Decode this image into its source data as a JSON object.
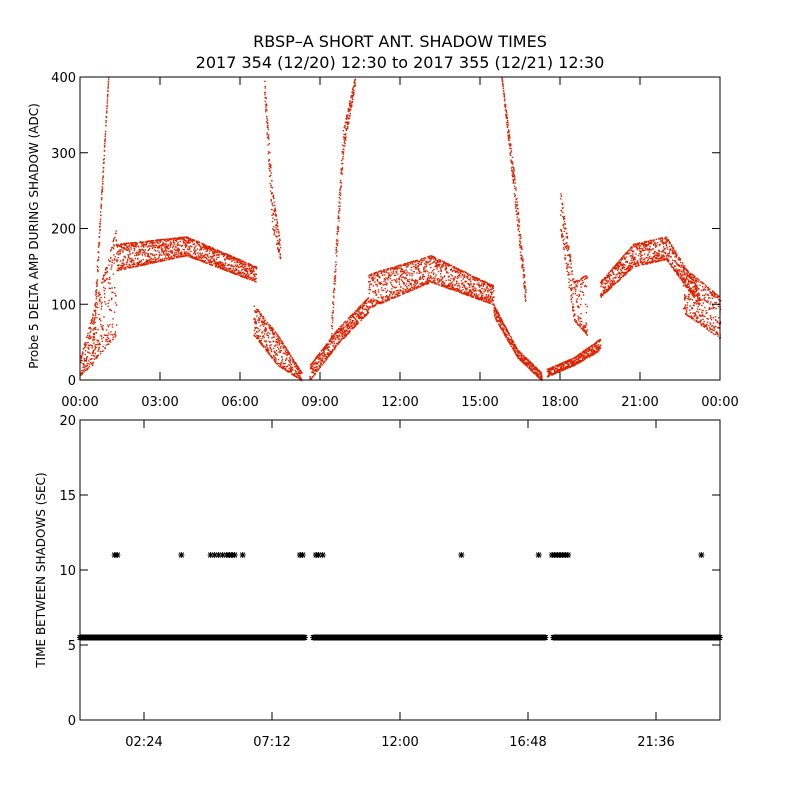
{
  "title_line1": "RBSP–A SHORT ANT. SHADOW TIMES",
  "title_line2": "2017 354 (12/20) 12:30 to 2017 355 (12/21) 12:30",
  "chart_data": [
    {
      "type": "scatter",
      "ylabel": "Probe 5 DELTA AMP DURING SHADOW (ADC)",
      "xlim": [
        0,
        24
      ],
      "ylim": [
        0,
        400
      ],
      "yticks": [
        0,
        100,
        200,
        300,
        400
      ],
      "xticks": [
        0,
        3,
        6,
        9,
        12,
        15,
        18,
        21,
        24
      ],
      "xtick_labels": [
        "00:00",
        "03:00",
        "06:00",
        "09:00",
        "12:00",
        "15:00",
        "18:00",
        "21:00",
        "00:00"
      ],
      "marker_color": "#dd2200",
      "segments": [
        {
          "t0": 0.0,
          "t1": 1.35,
          "lo": [
            5,
            60
          ],
          "hi": [
            30,
            200
          ]
        },
        {
          "t0": 0.45,
          "t1": 1.05,
          "lo": [
            20,
            400
          ],
          "hi": [
            50,
            400
          ]
        },
        {
          "t0": 1.35,
          "t1": 6.6,
          "lo": [
            145,
            165,
            130
          ],
          "hi": [
            180,
            190,
            150
          ]
        },
        {
          "t0": 6.5,
          "t1": 8.3,
          "lo": [
            60,
            20,
            0
          ],
          "hi": [
            100,
            60,
            10
          ]
        },
        {
          "t0": 6.9,
          "t1": 7.5,
          "lo": [
            380,
            200,
            160
          ],
          "hi": [
            400,
            250,
            180
          ]
        },
        {
          "t0": 8.6,
          "t1": 10.8,
          "lo": [
            0,
            50,
            90
          ],
          "hi": [
            20,
            70,
            110
          ]
        },
        {
          "t0": 9.4,
          "t1": 10.3,
          "lo": [
            50,
            300,
            390
          ],
          "hi": [
            70,
            330,
            400
          ]
        },
        {
          "t0": 10.8,
          "t1": 15.5,
          "lo": [
            95,
            130,
            100
          ],
          "hi": [
            140,
            165,
            125
          ]
        },
        {
          "t0": 15.5,
          "t1": 17.3,
          "lo": [
            85,
            30,
            0
          ],
          "hi": [
            100,
            40,
            10
          ]
        },
        {
          "t0": 15.8,
          "t1": 16.7,
          "lo": [
            400,
            250,
            100
          ],
          "hi": [
            400,
            280,
            120
          ]
        },
        {
          "t0": 17.5,
          "t1": 19.5,
          "lo": [
            5,
            20,
            40
          ],
          "hi": [
            15,
            30,
            55
          ]
        },
        {
          "t0": 18.0,
          "t1": 19.0,
          "lo": [
            200,
            80,
            60
          ],
          "hi": [
            250,
            130,
            140
          ]
        },
        {
          "t0": 19.5,
          "t1": 23.2,
          "lo": [
            110,
            150,
            160,
            100
          ],
          "hi": [
            130,
            180,
            190,
            120
          ]
        },
        {
          "t0": 22.6,
          "t1": 24.0,
          "lo": [
            90,
            55
          ],
          "hi": [
            150,
            110
          ]
        }
      ],
      "series": [
        {
          "values": []
        }
      ]
    },
    {
      "type": "scatter",
      "ylabel": "TIME BETWEEN SHADOWS (SEC)",
      "xlim": [
        0,
        24
      ],
      "ylim": [
        0,
        20
      ],
      "yticks": [
        0,
        5,
        10,
        15,
        20
      ],
      "xticks": [
        2.4,
        7.2,
        12.0,
        16.8,
        21.6
      ],
      "xtick_labels": [
        "02:24",
        "07:12",
        "12:00",
        "16:48",
        "21:36"
      ],
      "marker_color": "#000000",
      "baseline": {
        "value": 5.5,
        "ranges": [
          [
            0.0,
            8.45
          ],
          [
            8.75,
            17.45
          ],
          [
            17.75,
            24.0
          ]
        ]
      },
      "outliers": {
        "value": 11,
        "times": [
          1.3,
          1.4,
          3.8,
          4.9,
          5.05,
          5.2,
          5.35,
          5.5,
          5.6,
          5.7,
          5.8,
          6.1,
          8.25,
          8.35,
          8.85,
          8.95,
          9.1,
          14.3,
          17.2,
          17.7,
          17.8,
          17.9,
          18.0,
          18.1,
          18.2,
          18.3,
          23.3
        ]
      }
    }
  ]
}
